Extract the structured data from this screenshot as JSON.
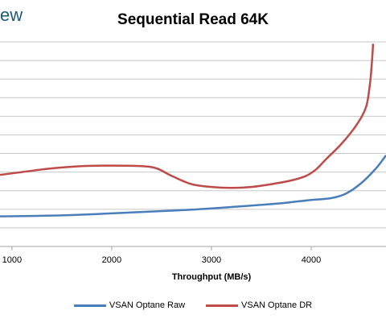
{
  "logo_fragment": "ew",
  "colors": {
    "raw": "#4a7ebb",
    "dr": "#be4b48",
    "grid": "#c8c8c8"
  },
  "chart_data": {
    "type": "line",
    "title": "Sequential Read 64K",
    "xlabel": "Throughput (MB/s)",
    "ylabel": "",
    "xticks": [
      1000,
      2000,
      3000,
      4000
    ],
    "xlim": [
      880,
      4750
    ],
    "ylim": [
      0,
      11
    ],
    "grid": true,
    "legend_position": "bottom",
    "series": [
      {
        "name": "VSAN Optane Raw",
        "x": [
          880,
          1200,
          1600,
          2000,
          2400,
          2800,
          3200,
          3600,
          3800,
          4000,
          4200,
          4350,
          4500,
          4650,
          4750
        ],
        "y": [
          1.62,
          1.64,
          1.69,
          1.78,
          1.88,
          1.98,
          2.12,
          2.28,
          2.38,
          2.5,
          2.6,
          2.85,
          3.4,
          4.2,
          4.9
        ]
      },
      {
        "name": "VSAN Optane DR",
        "x": [
          880,
          1100,
          1400,
          1700,
          2000,
          2300,
          2450,
          2600,
          2800,
          3000,
          3200,
          3400,
          3600,
          3800,
          3950,
          4050,
          4150,
          4300,
          4450,
          4550,
          4590,
          4610,
          4620
        ],
        "y": [
          3.85,
          4.0,
          4.2,
          4.32,
          4.35,
          4.32,
          4.2,
          3.8,
          3.35,
          3.2,
          3.15,
          3.2,
          3.35,
          3.55,
          3.8,
          4.15,
          4.7,
          5.5,
          6.5,
          7.5,
          8.8,
          10.0,
          10.9
        ]
      }
    ]
  }
}
